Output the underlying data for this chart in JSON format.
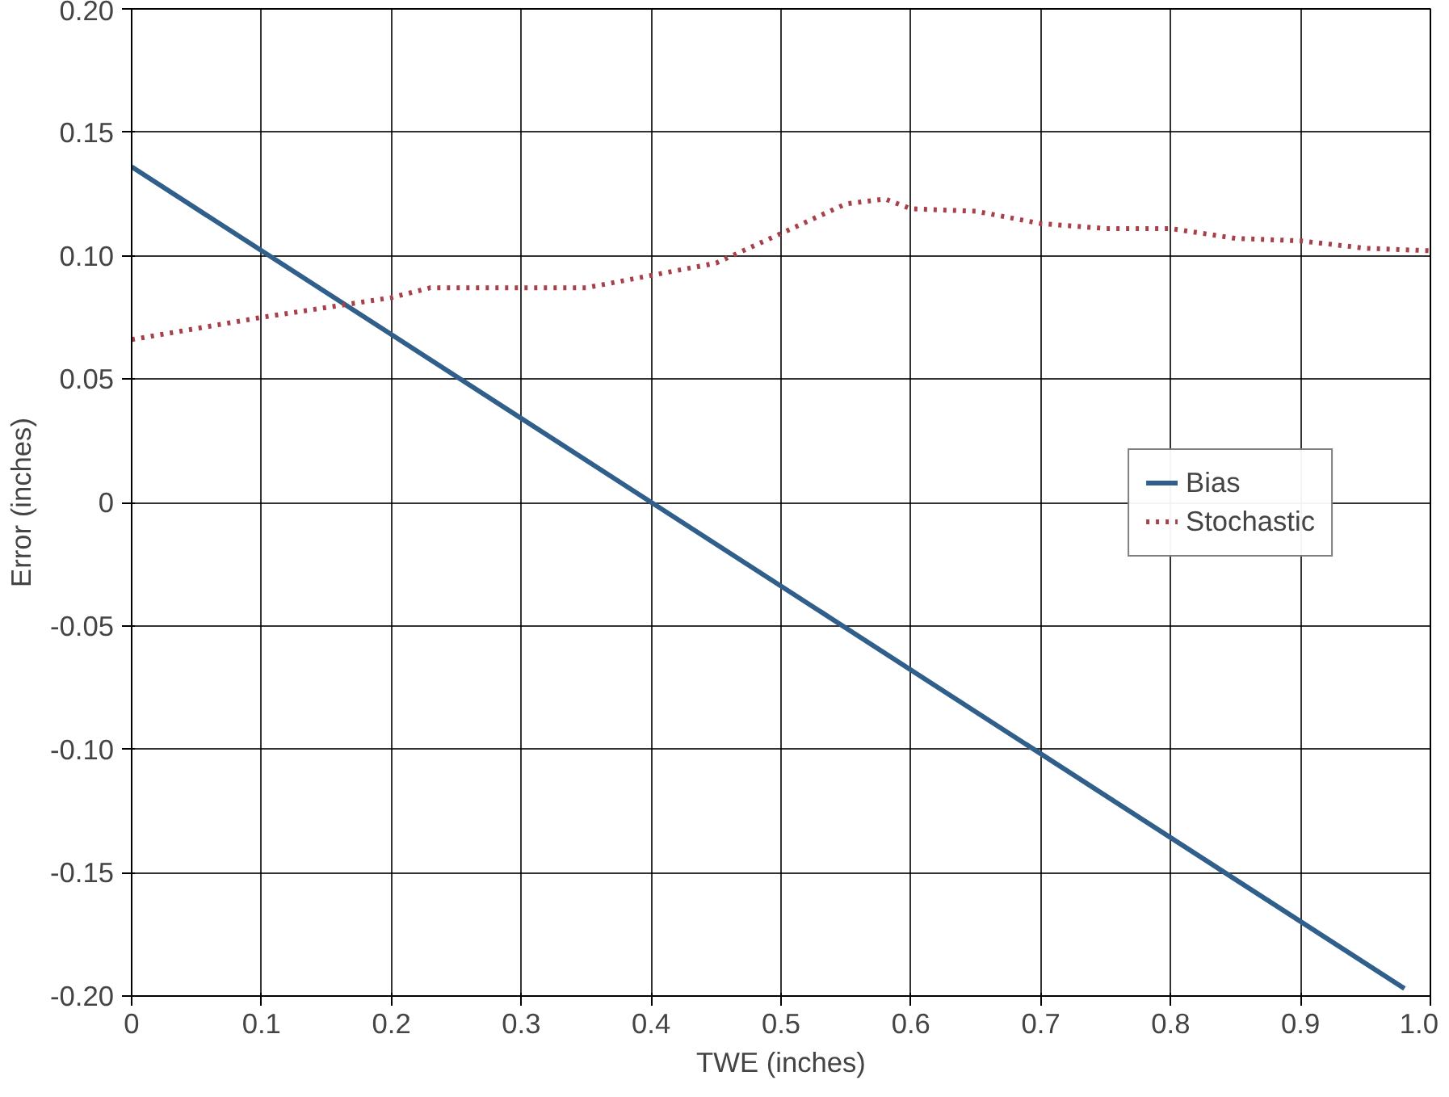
{
  "chart_data": {
    "type": "line",
    "xlabel": "TWE (inches)",
    "ylabel": "Error (inches)",
    "xlim": [
      0,
      1
    ],
    "ylim": [
      -0.2,
      0.2
    ],
    "xticks": [
      0,
      0.1,
      0.2,
      0.3,
      0.4,
      0.5,
      0.6,
      0.7,
      0.8,
      0.9,
      {
        "value": 1,
        "label": "1.0"
      }
    ],
    "yticks": [
      {
        "value": -0.2,
        "label": "-0.20"
      },
      {
        "value": -0.15,
        "label": "-0.15"
      },
      {
        "value": -0.1,
        "label": "-0.10"
      },
      -0.05,
      0,
      0.05,
      {
        "value": 0.1,
        "label": "0.10"
      },
      0.15,
      {
        "value": 0.2,
        "label": "0.20"
      }
    ],
    "grid": true,
    "legend": "right",
    "series": [
      {
        "name": "Bias",
        "color": "#2f5f8a",
        "line_style": "solid",
        "x": [
          0,
          0.98
        ],
        "values": [
          0.136,
          -0.197
        ]
      },
      {
        "name": "Stochastic",
        "color": "#a8404a",
        "line_style": "dotted",
        "x": [
          0,
          0.1,
          0.2,
          0.23,
          0.3,
          0.35,
          0.4,
          0.45,
          0.5,
          0.55,
          0.58,
          0.6,
          0.65,
          0.7,
          0.75,
          0.8,
          0.85,
          0.9,
          0.95,
          1.0
        ],
        "values": [
          0.066,
          0.075,
          0.083,
          0.087,
          0.087,
          0.087,
          0.092,
          0.097,
          0.109,
          0.121,
          0.123,
          0.119,
          0.118,
          0.113,
          0.111,
          0.111,
          0.107,
          0.106,
          0.103,
          0.102
        ]
      }
    ]
  }
}
